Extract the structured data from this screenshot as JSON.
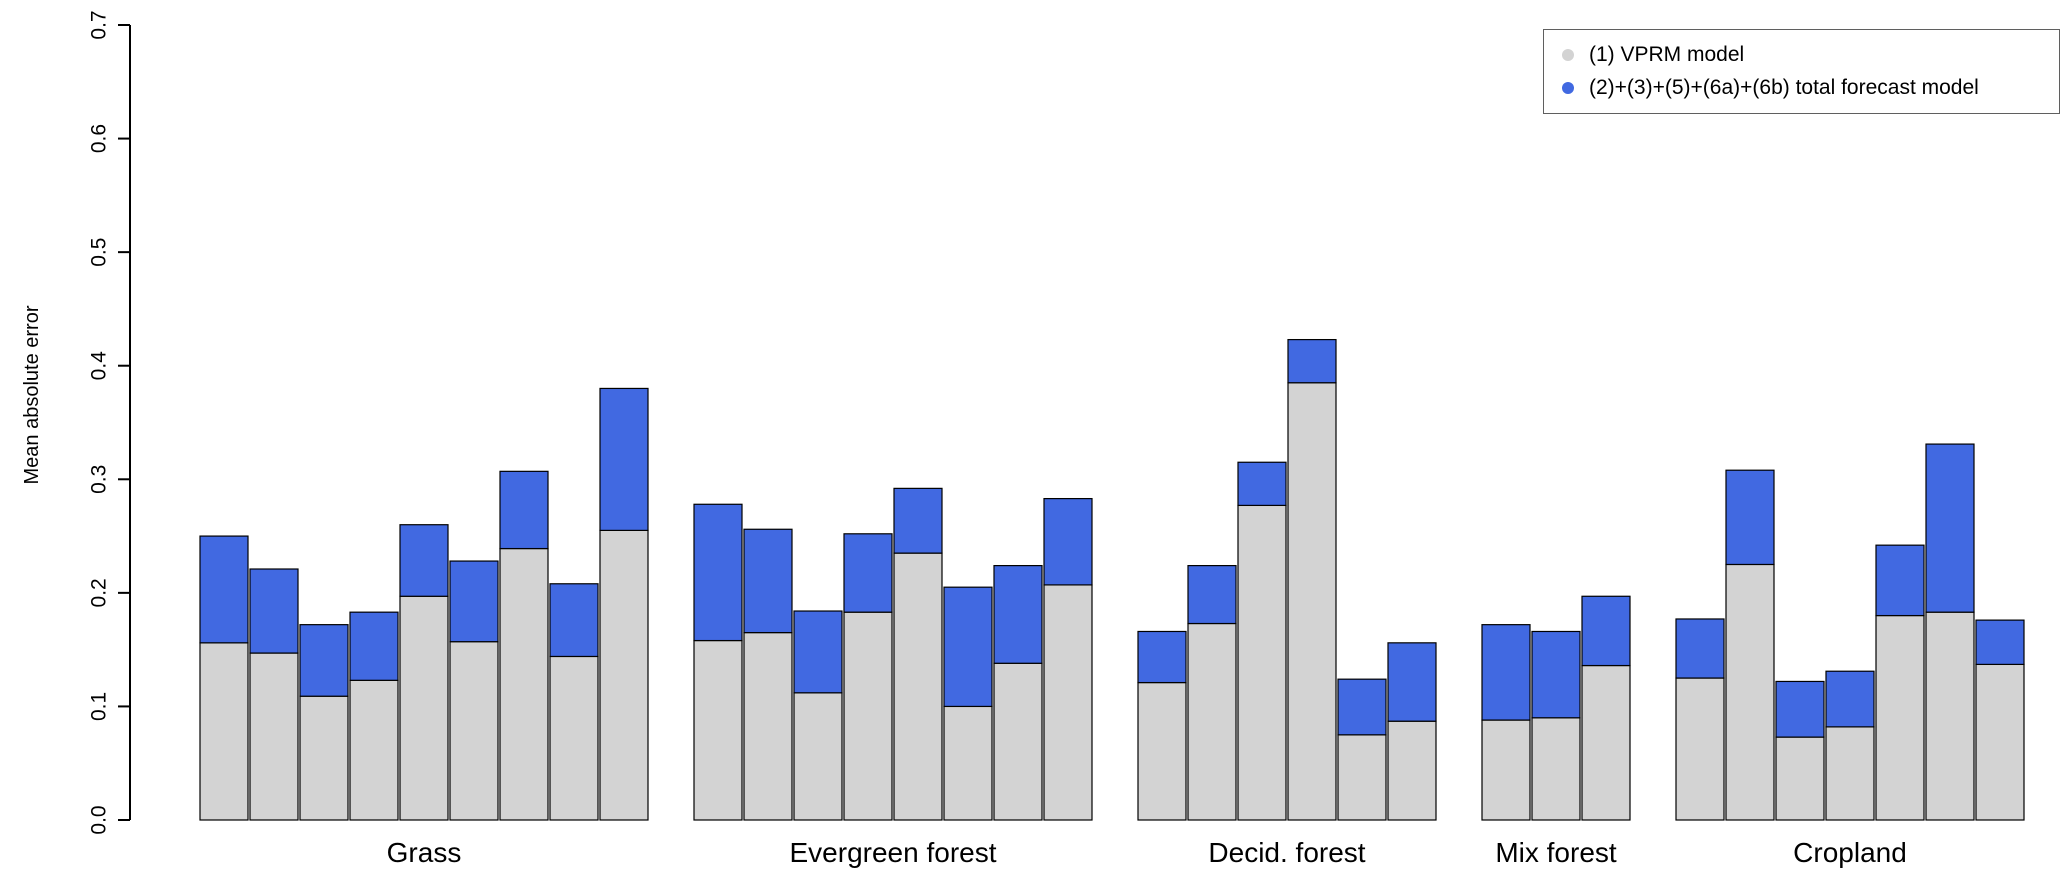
{
  "chart_data": {
    "type": "bar",
    "stacked": true,
    "title": "",
    "ylabel": "Mean absolute error",
    "xlabel": "",
    "ylim": [
      0,
      0.7
    ],
    "yticks": [
      0.0,
      0.1,
      0.2,
      0.3,
      0.4,
      0.5,
      0.6,
      0.7
    ],
    "grid": false,
    "legend_position": "top-right",
    "legend": [
      {
        "label": "(1) VPRM model",
        "color": "#d3d3d3"
      },
      {
        "label": "(2)+(3)+(5)+(6a)+(6b) total forecast model",
        "color": "#4169e1"
      }
    ],
    "groups": [
      {
        "label": "Grass",
        "bars": [
          {
            "vprm": 0.156,
            "total": 0.25
          },
          {
            "vprm": 0.147,
            "total": 0.221
          },
          {
            "vprm": 0.109,
            "total": 0.172
          },
          {
            "vprm": 0.123,
            "total": 0.183
          },
          {
            "vprm": 0.197,
            "total": 0.26
          },
          {
            "vprm": 0.157,
            "total": 0.228
          },
          {
            "vprm": 0.239,
            "total": 0.307
          },
          {
            "vprm": 0.144,
            "total": 0.208
          },
          {
            "vprm": 0.255,
            "total": 0.38
          }
        ]
      },
      {
        "label": "Evergreen forest",
        "bars": [
          {
            "vprm": 0.158,
            "total": 0.278
          },
          {
            "vprm": 0.165,
            "total": 0.256
          },
          {
            "vprm": 0.112,
            "total": 0.184
          },
          {
            "vprm": 0.183,
            "total": 0.252
          },
          {
            "vprm": 0.235,
            "total": 0.292
          },
          {
            "vprm": 0.1,
            "total": 0.205
          },
          {
            "vprm": 0.138,
            "total": 0.224
          },
          {
            "vprm": 0.207,
            "total": 0.283
          }
        ]
      },
      {
        "label": "Decid. forest",
        "bars": [
          {
            "vprm": 0.121,
            "total": 0.166
          },
          {
            "vprm": 0.173,
            "total": 0.224
          },
          {
            "vprm": 0.277,
            "total": 0.315
          },
          {
            "vprm": 0.385,
            "total": 0.423
          },
          {
            "vprm": 0.075,
            "total": 0.124
          },
          {
            "vprm": 0.087,
            "total": 0.156
          }
        ]
      },
      {
        "label": "Mix forest",
        "bars": [
          {
            "vprm": 0.088,
            "total": 0.172
          },
          {
            "vprm": 0.09,
            "total": 0.166
          },
          {
            "vprm": 0.136,
            "total": 0.197
          }
        ]
      },
      {
        "label": "Cropland",
        "bars": [
          {
            "vprm": 0.125,
            "total": 0.177
          },
          {
            "vprm": 0.225,
            "total": 0.308
          },
          {
            "vprm": 0.073,
            "total": 0.122
          },
          {
            "vprm": 0.082,
            "total": 0.131
          },
          {
            "vprm": 0.18,
            "total": 0.242
          },
          {
            "vprm": 0.183,
            "total": 0.331
          },
          {
            "vprm": 0.137,
            "total": 0.176
          }
        ]
      }
    ]
  }
}
